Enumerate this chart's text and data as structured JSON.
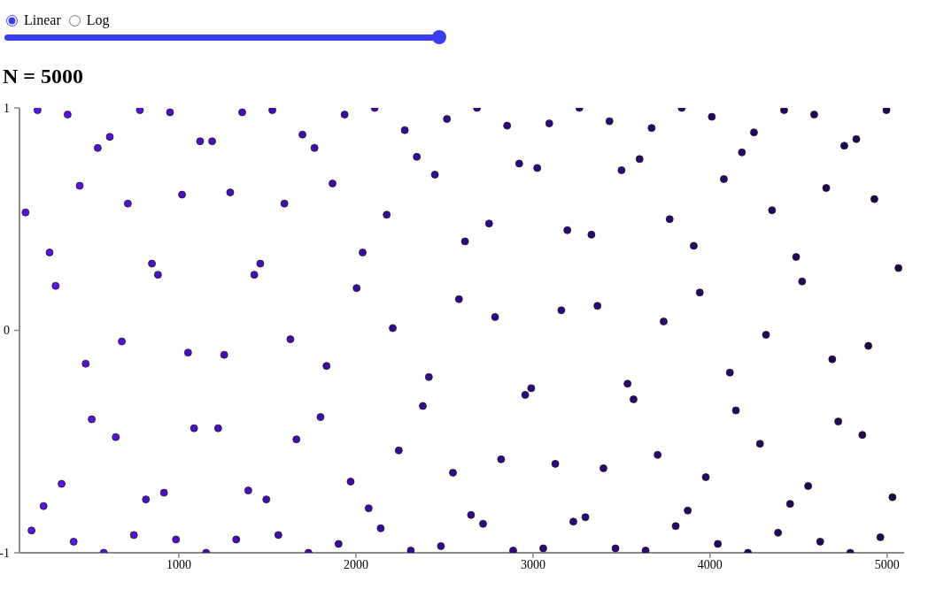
{
  "chart_data": {
    "type": "scatter",
    "title": "N = 5000",
    "annotations": [
      "Linear",
      "Log"
    ],
    "x": [
      134,
      168,
      202,
      236,
      270,
      304,
      338,
      372,
      406,
      440,
      474,
      508,
      542,
      576,
      610,
      644,
      678,
      712,
      746,
      780,
      814,
      848,
      882,
      916,
      950,
      984,
      1018,
      1052,
      1086,
      1120,
      1154,
      1188,
      1222,
      1256,
      1290,
      1324,
      1358,
      1392,
      1426,
      1460,
      1494,
      1528,
      1562,
      1596,
      1630,
      1664,
      1698,
      1732,
      1766,
      1800,
      1834,
      1868,
      1902,
      1936,
      1970,
      2004,
      2038,
      2072,
      2106,
      2140,
      2174,
      2208,
      2242,
      2276,
      2310,
      2344,
      2378,
      2412,
      2446,
      2480,
      2514,
      2548,
      2582,
      2616,
      2650,
      2684,
      2718,
      2752,
      2786,
      2820,
      2854,
      2888,
      2922,
      2956,
      2990,
      3024,
      3058,
      3092,
      3126,
      3160,
      3194,
      3228,
      3262,
      3296,
      3330,
      3364,
      3398,
      3432,
      3466,
      3500,
      3534,
      3568,
      3602,
      3636,
      3670,
      3704,
      3738,
      3772,
      3806,
      3840,
      3874,
      3908,
      3942,
      3976,
      4010,
      4044,
      4078,
      4112,
      4146,
      4180,
      4214,
      4248,
      4282,
      4316,
      4350,
      4384,
      4418,
      4452,
      4486,
      4520,
      4554,
      4588,
      4622,
      4656,
      4690,
      4724,
      4758,
      4792,
      4826,
      4860,
      4894,
      4928,
      4962,
      4996,
      5030,
      5064
    ],
    "values": [
      0.53,
      -0.9,
      0.99,
      -0.79,
      0.35,
      0.2,
      -0.69,
      0.97,
      -0.95,
      0.65,
      -0.15,
      -0.4,
      0.82,
      -1.0,
      0.87,
      -0.48,
      -0.05,
      0.57,
      -0.92,
      0.99,
      -0.76,
      0.3,
      0.25,
      -0.73,
      0.98,
      -0.94,
      0.61,
      -0.1,
      -0.44,
      0.85,
      -1.0,
      0.85,
      -0.44,
      -0.11,
      0.62,
      -0.94,
      0.98,
      -0.72,
      0.25,
      0.3,
      -0.76,
      0.99,
      -0.92,
      0.57,
      -0.04,
      -0.49,
      0.88,
      -1.0,
      0.82,
      -0.39,
      -0.16,
      0.66,
      -0.96,
      0.97,
      -0.68,
      0.19,
      0.35,
      -0.8,
      1.0,
      -0.89,
      0.52,
      0.01,
      -0.54,
      0.9,
      -0.99,
      0.78,
      -0.34,
      -0.21,
      0.7,
      -0.97,
      0.95,
      -0.64,
      0.14,
      0.4,
      -0.83,
      1.0,
      -0.87,
      0.48,
      0.06,
      -0.58,
      0.92,
      -0.99,
      0.75,
      -0.29,
      -0.26,
      0.73,
      -0.98,
      0.93,
      -0.6,
      0.09,
      0.45,
      -0.86,
      1.0,
      -0.84,
      0.43,
      0.11,
      -0.62,
      0.94,
      -0.98,
      0.72,
      -0.24,
      -0.31,
      0.77,
      -0.99,
      0.91,
      -0.56,
      0.04,
      0.5,
      -0.88,
      1.0,
      -0.81,
      0.38,
      0.17,
      -0.66,
      0.96,
      -0.96,
      0.68,
      -0.19,
      -0.36,
      0.8,
      -1.0,
      0.89,
      -0.51,
      -0.02,
      0.54,
      -0.91,
      0.99,
      -0.78,
      0.33,
      0.22,
      -0.7,
      0.97,
      -0.95,
      0.64,
      -0.13,
      -0.41,
      0.83,
      -1.0,
      0.86,
      -0.47,
      -0.07,
      0.59,
      -0.93,
      0.99,
      -0.75,
      0.28
    ],
    "colors": [
      "#5913e2",
      "#5913e2",
      "#5913e2",
      "#5913e2",
      "#5913e2",
      "#5913e2",
      "#5913e2",
      "#5913e2",
      "#5913e2",
      "#5913e2",
      "#5312d5",
      "#5312d5",
      "#5312d5",
      "#5312d5",
      "#5312d5",
      "#5312d5",
      "#5312d5",
      "#5312d5",
      "#5312d5",
      "#5312d5",
      "#4d10c9",
      "#4d10c9",
      "#4d10c9",
      "#4d10c9",
      "#4d10c9",
      "#4d10c9",
      "#4d10c9",
      "#4d10c9",
      "#4d10c9",
      "#4d10c9",
      "#470ebc",
      "#470ebc",
      "#470ebc",
      "#470ebc",
      "#470ebc",
      "#470ebc",
      "#470ebc",
      "#470ebc",
      "#470ebc",
      "#470ebc",
      "#420db0",
      "#420db0",
      "#420db0",
      "#420db0",
      "#420db0",
      "#420db0",
      "#420db0",
      "#420db0",
      "#420db0",
      "#420db0",
      "#3c0ba3",
      "#3c0ba3",
      "#3c0ba3",
      "#3c0ba3",
      "#3c0ba3",
      "#3c0ba3",
      "#3c0ba3",
      "#3c0ba3",
      "#3c0ba3",
      "#3c0ba3",
      "#360a97",
      "#360a97",
      "#360a97",
      "#360a97",
      "#360a97",
      "#360a97",
      "#360a97",
      "#360a97",
      "#360a97",
      "#360a97",
      "#30088a",
      "#30088a",
      "#30088a",
      "#30088a",
      "#30088a",
      "#30088a",
      "#30088a",
      "#30088a",
      "#30088a",
      "#30088a",
      "#2d0881",
      "#2d0881",
      "#2d0881",
      "#2d0881",
      "#2d0881",
      "#2d0881",
      "#2d0881",
      "#2d0881",
      "#2d0881",
      "#2d0881",
      "#2b0878",
      "#2b0878",
      "#2b0878",
      "#2b0878",
      "#2b0878",
      "#2b0878",
      "#2b0878",
      "#2b0878",
      "#2b0878",
      "#2b0878",
      "#280770",
      "#280770",
      "#280770",
      "#280770",
      "#280770",
      "#280770",
      "#280770",
      "#280770",
      "#280770",
      "#280770",
      "#250767",
      "#250767",
      "#250767",
      "#250767",
      "#250767",
      "#250767",
      "#250767",
      "#250767",
      "#250767",
      "#250767",
      "#23075e",
      "#23075e",
      "#23075e",
      "#23075e",
      "#23075e",
      "#23075e",
      "#23075e",
      "#23075e",
      "#23075e",
      "#23075e",
      "#200655",
      "#200655",
      "#200655",
      "#200655",
      "#200655",
      "#200655",
      "#200655",
      "#200655",
      "#200655",
      "#200655",
      "#1d064c",
      "#1d064c",
      "#1d064c",
      "#1d064c",
      "#1d064c",
      "#1d064c"
    ],
    "xlim": [
      100,
      5096
    ],
    "xticks": [
      1000,
      2000,
      3000,
      4000,
      5000
    ],
    "ylim": [
      -1,
      1
    ],
    "yticks": [
      -1,
      0,
      1
    ],
    "marker": "circle"
  }
}
